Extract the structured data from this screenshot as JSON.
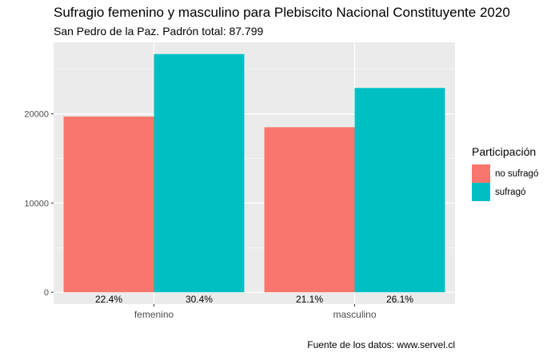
{
  "chart_data": {
    "type": "bar",
    "title": "Sufragio femenino y masculino para Plebiscito Nacional Constituyente 2020",
    "subtitle": "San Pedro de la Paz. Padrón total: 87.799",
    "caption": "Fuente de los datos: www.servel.cl",
    "xlabel": "",
    "ylabel": "",
    "categories": [
      "femenino",
      "masculino"
    ],
    "series": [
      {
        "name": "no sufragó",
        "color": "#F8766D",
        "values": [
          19700,
          18500
        ],
        "labels": [
          "22.4%",
          "21.1%"
        ]
      },
      {
        "name": "sufragó",
        "color": "#00BFC4",
        "values": [
          26700,
          22900
        ],
        "labels": [
          "30.4%",
          "26.1%"
        ]
      }
    ],
    "ylim": [
      -1330,
      28020
    ],
    "yticks": [
      0,
      10000,
      20000
    ],
    "grid": true,
    "background": "#EBEBEB",
    "legend": {
      "title": "Participación",
      "position": "right"
    }
  }
}
